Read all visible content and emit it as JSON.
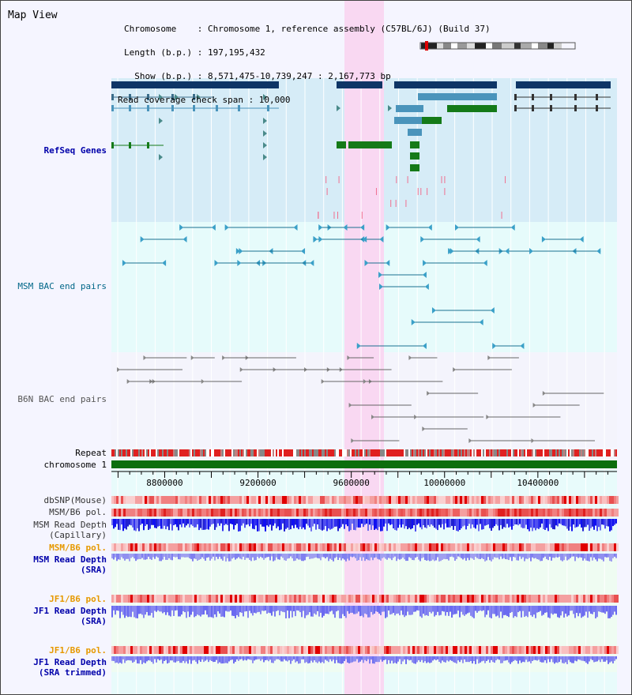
{
  "view": {
    "title": "Map View",
    "info_lines": [
      "Chromosome    : Chromosome 1, reference assembly (C57BL/6J) (Build 37)",
      "Length (b.p.) : 197,195,432",
      "  Show (b.p.) : 8,571,475-10,739,247 : 2,167,773 bp",
      "Read coverage check span : 10,000"
    ]
  },
  "tracks": [
    {
      "id": "refseq",
      "label": "RefSeq Genes",
      "color": "#0000aa",
      "bold": true
    },
    {
      "id": "msm_bac",
      "label": "MSM BAC end pairs",
      "color": "#006688",
      "bold": false
    },
    {
      "id": "b6n_bac",
      "label": "B6N BAC end pairs",
      "color": "#555555",
      "bold": false
    },
    {
      "id": "repeat",
      "label": "Repeat",
      "color": "#000000",
      "bold": false
    },
    {
      "id": "chromosome",
      "label": "chromosome 1",
      "color": "#000000",
      "bold": false
    },
    {
      "id": "dbsnp",
      "label": "dbSNP(Mouse)",
      "color": "#333333",
      "bold": false
    },
    {
      "id": "msm_b6_pol_cap",
      "label": "MSM/B6 pol.",
      "color": "#333333",
      "bold": false
    },
    {
      "id": "msm_depth_cap",
      "label": "MSM Read Depth\n(Capillary)",
      "color": "#333333",
      "bold": false
    },
    {
      "id": "msm_b6_pol_sra",
      "label": "MSM/B6 pol.",
      "color": "#e69900",
      "bold": true
    },
    {
      "id": "msm_depth_sra",
      "label": "MSM Read Depth\n(SRA)",
      "color": "#0000aa",
      "bold": true
    },
    {
      "id": "jf1_b6_pol",
      "label": "JF1/B6 pol.",
      "color": "#e69900",
      "bold": true
    },
    {
      "id": "jf1_depth_sra",
      "label": "JF1 Read Depth\n(SRA)",
      "color": "#0000aa",
      "bold": true
    },
    {
      "id": "jf1_b6_pol_trim",
      "label": "JF1/B6 pol.",
      "color": "#e69900",
      "bold": true
    },
    {
      "id": "jf1_depth_trim",
      "label": "JF1 Read Depth\n(SRA trimmed)",
      "color": "#0000aa",
      "bold": true
    }
  ],
  "axis": {
    "ticks": [
      {
        "label": "8800000",
        "value": 8800000
      },
      {
        "label": "9200000",
        "value": 9200000
      },
      {
        "label": "9600000",
        "value": 9600000
      },
      {
        "label": "10000000",
        "value": 10000000
      },
      {
        "label": "10400000",
        "value": 10400000
      }
    ]
  },
  "colors": {
    "highlight": "#f9d8f2",
    "refseq_bg": "#d6ecf7",
    "bac_bg": "#e6fbfb",
    "gene_navy": "#0e3566",
    "gene_blue": "#4a94bb",
    "gene_green": "#147a18",
    "bac_line": "#1a7090",
    "b6n_line": "#666666",
    "chromosome": "#0c6e0c"
  }
}
